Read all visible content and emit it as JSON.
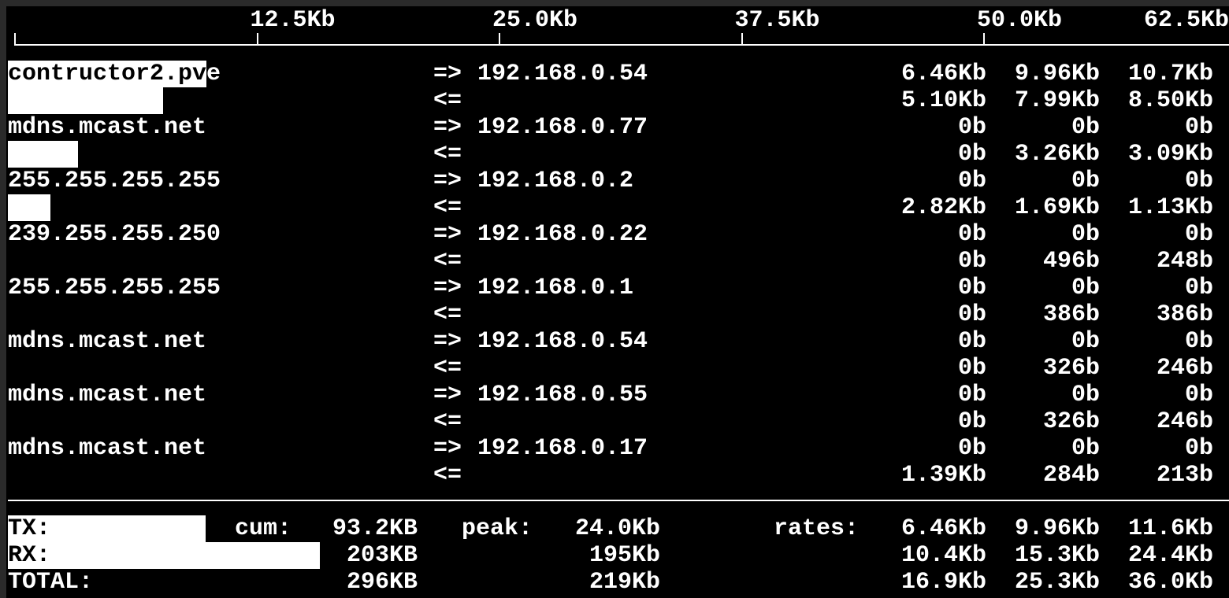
{
  "scale": {
    "unit_max_kb": 62.5,
    "ticks": [
      {
        "label": "12.5Kb",
        "kb": 12.5
      },
      {
        "label": "25.0Kb",
        "kb": 25.0
      },
      {
        "label": "37.5Kb",
        "kb": 37.5
      },
      {
        "label": "50.0Kb",
        "kb": 50.0
      },
      {
        "label": "62.5Kb",
        "kb": 62.5
      }
    ]
  },
  "flows": [
    {
      "host": "contructor2.pve",
      "peer": "192.168.0.54",
      "out": "=>",
      "in": "<=",
      "tx": [
        "6.46Kb",
        "9.96Kb",
        "10.7Kb"
      ],
      "rx": [
        "5.10Kb",
        "7.99Kb",
        "8.50Kb"
      ],
      "tx_bar_kb": 9.96,
      "rx_bar_kb": 7.99
    },
    {
      "host": "mdns.mcast.net",
      "peer": "192.168.0.77",
      "out": "=>",
      "in": "<=",
      "tx": [
        "0b",
        "0b",
        "0b"
      ],
      "rx": [
        "0b",
        "3.26Kb",
        "3.09Kb"
      ],
      "tx_bar_kb": 0,
      "rx_bar_kb": 3.6
    },
    {
      "host": "255.255.255.255",
      "peer": "192.168.0.2",
      "out": "=>",
      "in": "<=",
      "tx": [
        "0b",
        "0b",
        "0b"
      ],
      "rx": [
        "2.82Kb",
        "1.69Kb",
        "1.13Kb"
      ],
      "tx_bar_kb": 0,
      "rx_bar_kb": 2.2
    },
    {
      "host": "239.255.255.250",
      "peer": "192.168.0.22",
      "out": "=>",
      "in": "<=",
      "tx": [
        "0b",
        "0b",
        "0b"
      ],
      "rx": [
        "0b",
        "496b",
        "248b"
      ],
      "tx_bar_kb": 0,
      "rx_bar_kb": 0
    },
    {
      "host": "255.255.255.255",
      "peer": "192.168.0.1",
      "out": "=>",
      "in": "<=",
      "tx": [
        "0b",
        "0b",
        "0b"
      ],
      "rx": [
        "0b",
        "386b",
        "386b"
      ],
      "tx_bar_kb": 0,
      "rx_bar_kb": 0
    },
    {
      "host": "mdns.mcast.net",
      "peer": "192.168.0.54",
      "out": "=>",
      "in": "<=",
      "tx": [
        "0b",
        "0b",
        "0b"
      ],
      "rx": [
        "0b",
        "326b",
        "246b"
      ],
      "tx_bar_kb": 0,
      "rx_bar_kb": 0
    },
    {
      "host": "mdns.mcast.net",
      "peer": "192.168.0.55",
      "out": "=>",
      "in": "<=",
      "tx": [
        "0b",
        "0b",
        "0b"
      ],
      "rx": [
        "0b",
        "326b",
        "246b"
      ],
      "tx_bar_kb": 0,
      "rx_bar_kb": 0
    },
    {
      "host": "mdns.mcast.net",
      "peer": "192.168.0.17",
      "out": "=>",
      "in": "<=",
      "tx": [
        "0b",
        "0b",
        "0b"
      ],
      "rx": [
        "1.39Kb",
        "284b",
        "213b"
      ],
      "tx_bar_kb": 0,
      "rx_bar_kb": 0
    }
  ],
  "totals": {
    "cum_label": "cum:",
    "peak_label": "peak:",
    "rates_label": "rates:",
    "rows": [
      {
        "label": "TX:",
        "cum": "93.2KB",
        "peak": "24.0Kb",
        "rates": [
          "6.46Kb",
          "9.96Kb",
          "11.6Kb"
        ],
        "bar_kb": 10.2
      },
      {
        "label": "RX:",
        "cum": "203KB",
        "peak": "195Kb",
        "rates": [
          "10.4Kb",
          "15.3Kb",
          "24.4Kb"
        ],
        "bar_kb": 16.1
      },
      {
        "label": "TOTAL:",
        "cum": "296KB",
        "peak": "219Kb",
        "rates": [
          "16.9Kb",
          "25.3Kb",
          "36.0Kb"
        ]
      }
    ]
  },
  "colors": {
    "background": "#000000",
    "foreground": "#ffffff",
    "frame": "#2a2a2a"
  }
}
